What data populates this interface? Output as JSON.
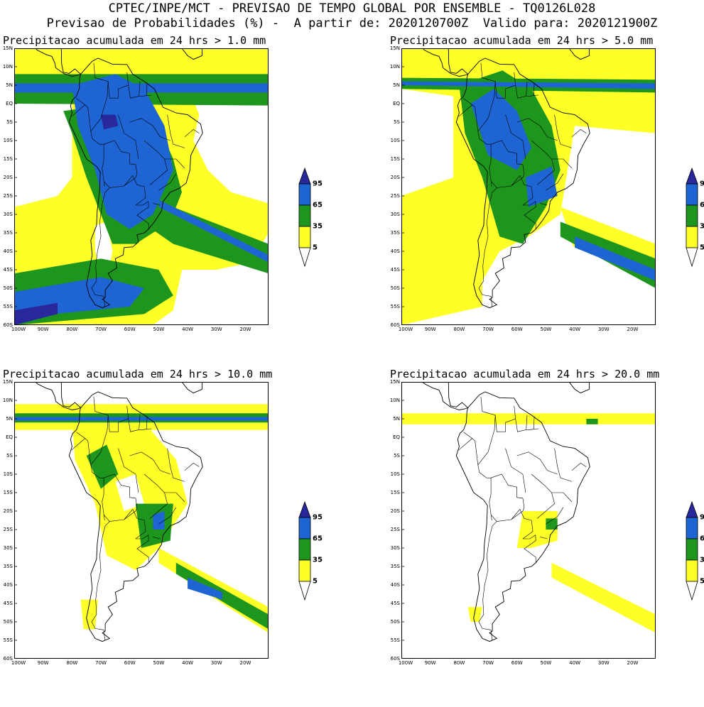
{
  "header": {
    "line1": "CPTEC/INPE/MCT - PREVISAO DE TEMPO GLOBAL POR ENSEMBLE - TQ0126L028",
    "line2": "Previsao de Probabilidades (%) -  A partir de: 2020120700Z  Valido para: 2020121900Z"
  },
  "panels": [
    {
      "title": "Precipitacao acumulada em 24 hrs > 1.0 mm"
    },
    {
      "title": "Precipitacao acumulada em 24 hrs > 5.0 mm"
    },
    {
      "title": "Precipitacao acumulada em 24 hrs > 10.0 mm"
    },
    {
      "title": "Precipitacao acumulada em 24 hrs > 20.0 mm"
    }
  ],
  "lat_labels": [
    "15N",
    "10N",
    "5N",
    "EQ",
    "5S",
    "10S",
    "15S",
    "20S",
    "25S",
    "30S",
    "35S",
    "40S",
    "45S",
    "50S",
    "55S",
    "60S"
  ],
  "lon_labels": [
    "100W",
    "90W",
    "80W",
    "70W",
    "60W",
    "50W",
    "40W",
    "30W",
    "20W"
  ],
  "colorbar": {
    "labels": [
      "95",
      "65",
      "35",
      "5"
    ],
    "colors": {
      "yellow": "#ffff28",
      "green": "#1e961e",
      "blue": "#1e64d2",
      "darkblue": "#28289c"
    }
  }
}
